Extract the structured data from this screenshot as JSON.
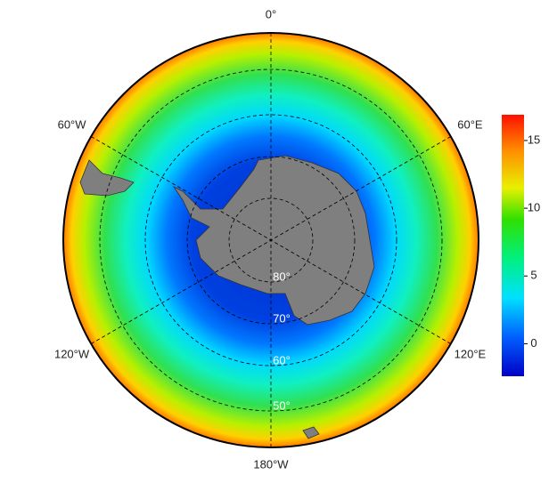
{
  "map": {
    "lon_labels": [
      "0°",
      "60°E",
      "120°E",
      "180°W",
      "120°W",
      "60°W"
    ],
    "lat_labels": [
      "80°",
      "70°",
      "60°",
      "50°"
    ],
    "colorbar": {
      "lim": [
        -2.4,
        16.9
      ],
      "ticks": [
        0,
        5,
        10,
        15
      ]
    }
  }
}
